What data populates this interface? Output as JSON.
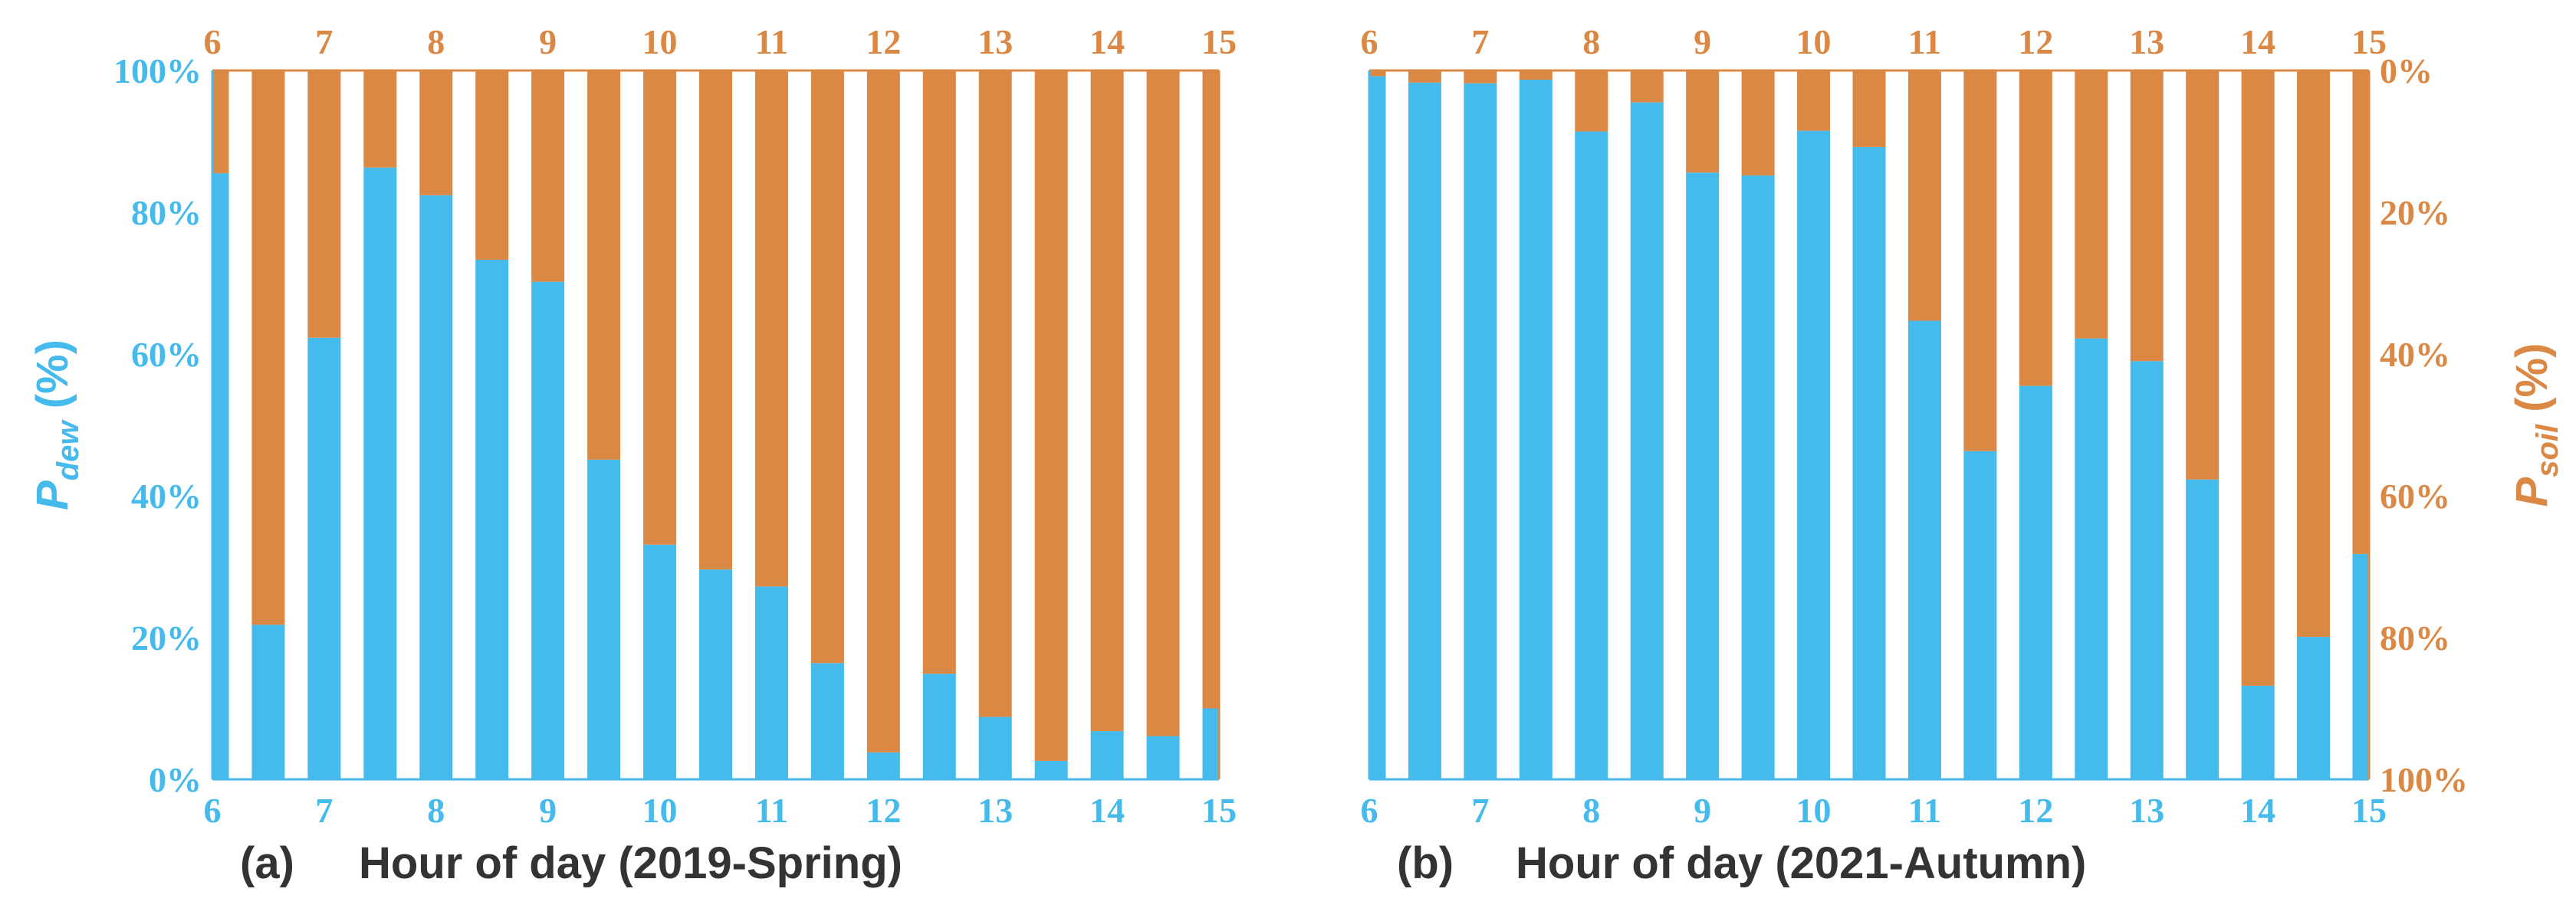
{
  "colors": {
    "dew": "#45BAEC",
    "soil": "#DB8844",
    "text": "#333333"
  },
  "panels": [
    {
      "label": "(a)",
      "xlabel": "Hour of day (2019-Spring)",
      "ylabel_left": {
        "base": "P",
        "sub": "dew",
        "suffix": " (%)"
      },
      "ylabel_right": null,
      "show_left_ticks": true,
      "show_right_ticks": false
    },
    {
      "label": "(b)",
      "xlabel": "Hour of day (2021-Autumn)",
      "ylabel_left": null,
      "ylabel_right": {
        "base": "P",
        "sub": "soil",
        "suffix": " (%)"
      },
      "show_left_ticks": false,
      "show_right_ticks": true
    }
  ],
  "chart_data": [
    {
      "type": "bar",
      "stacked": true,
      "x": [
        6,
        6.5,
        7,
        7.5,
        8,
        8.5,
        9,
        9.5,
        10,
        10.5,
        11,
        11.5,
        12,
        12.5,
        13,
        13.5,
        14,
        14.5,
        15
      ],
      "x_ticks": [
        "6",
        "7",
        "8",
        "9",
        "10",
        "11",
        "12",
        "13",
        "14",
        "15"
      ],
      "xlim": [
        6,
        15
      ],
      "series": [
        {
          "values": [
            85.5,
            21.8,
            62.3,
            86.3,
            82.4,
            73.3,
            70.2,
            45.1,
            33.1,
            29.6,
            27.2,
            16.4,
            3.8,
            14.9,
            8.8,
            2.6,
            6.8,
            6.1,
            10.0
          ]
        },
        {
          "values": [
            14.5,
            78.2,
            37.7,
            13.7,
            17.6,
            26.7,
            29.8,
            54.9,
            66.9,
            70.4,
            72.8,
            83.6,
            96.2,
            85.1,
            91.2,
            97.4,
            93.2,
            93.9,
            90.0
          ]
        }
      ],
      "ylim": [
        0,
        100
      ],
      "y_ticks_left": [
        "0%",
        "20%",
        "40%",
        "60%",
        "80%",
        "100%"
      ],
      "xlabel": "Hour of day (2019-Spring)",
      "ylabel": "Pdew (%)"
    },
    {
      "type": "bar",
      "stacked": true,
      "x": [
        6,
        6.5,
        7,
        7.5,
        8,
        8.5,
        9,
        9.5,
        10,
        10.5,
        11,
        11.5,
        12,
        12.5,
        13,
        13.5,
        14,
        14.5,
        15
      ],
      "x_ticks": [
        "6",
        "7",
        "8",
        "9",
        "10",
        "11",
        "12",
        "13",
        "14",
        "15"
      ],
      "xlim": [
        6,
        15
      ],
      "series": [
        {
          "values": [
            99.2,
            98.3,
            98.2,
            98.7,
            91.4,
            95.5,
            85.6,
            85.2,
            91.5,
            89.2,
            64.7,
            46.3,
            55.5,
            62.2,
            59.0,
            42.3,
            13.2,
            20.1,
            31.8
          ]
        },
        {
          "values": [
            0.8,
            1.7,
            1.8,
            1.3,
            8.6,
            4.5,
            14.4,
            14.8,
            8.5,
            10.8,
            35.3,
            53.7,
            44.5,
            37.8,
            41.0,
            57.7,
            86.8,
            79.9,
            68.2
          ]
        }
      ],
      "ylim": [
        0,
        100
      ],
      "y_ticks_right": [
        "0%",
        "20%",
        "40%",
        "60%",
        "80%",
        "100%"
      ],
      "xlabel": "Hour of day (2021-Autumn)",
      "ylabel": "Psoil (%)"
    }
  ]
}
